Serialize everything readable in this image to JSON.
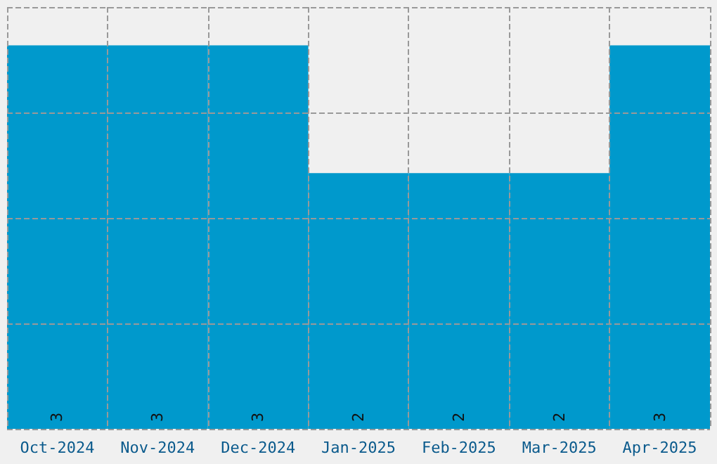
{
  "chart_data": {
    "type": "bar",
    "categories": [
      "Oct-2024",
      "Nov-2024",
      "Dec-2024",
      "Jan-2025",
      "Feb-2025",
      "Mar-2025",
      "Apr-2025"
    ],
    "values": [
      3,
      3,
      3,
      2,
      2,
      2,
      3
    ],
    "color": "#0099cc",
    "data_labels": true,
    "grid": true,
    "tick_labels": "x",
    "ylim": [
      0,
      3.3
    ]
  }
}
